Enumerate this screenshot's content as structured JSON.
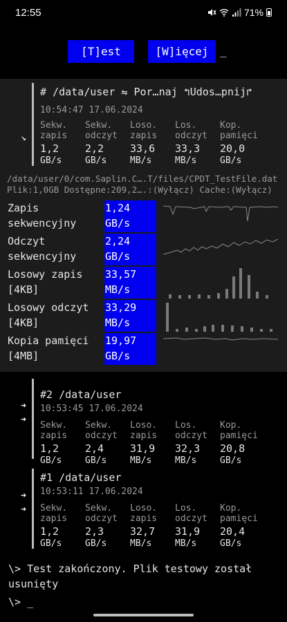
{
  "status_bar": {
    "time": "12:55",
    "battery": "71%"
  },
  "top_buttons": {
    "test": "[T]est",
    "more": "[W]ięcej",
    "cursor": "_"
  },
  "current": {
    "header": "#  /data/user ⇋ Por…naj  ↰Udos…pnij↱",
    "date": "10:54:47 17.06.2024",
    "arrow": "↘",
    "columns": [
      {
        "l1": "Sekw.",
        "l2": "zapis",
        "value": "1,2",
        "unit": "GB/s"
      },
      {
        "l1": "Sekw.",
        "l2": "odczyt",
        "value": "2,2",
        "unit": "GB/s"
      },
      {
        "l1": "Loso.",
        "l2": "zapis",
        "value": "33,6",
        "unit": "MB/s"
      },
      {
        "l1": "Los.",
        "l2": "odczyt",
        "value": "33,3",
        "unit": "MB/s"
      },
      {
        "l1": "Kop.",
        "l2": "pamięci",
        "value": "20,0",
        "unit": "GB/s"
      }
    ]
  },
  "file_path": "/data/user/0/com.Saplin.C….T/files/CPDT_TestFile.dat",
  "file_info": "Plik:1,0GB Dostępne:209,2….:(Wyłącz) Cache:(Wyłącz)",
  "benchmarks": [
    {
      "name1": "Zapis",
      "name2": "sekwencyjny",
      "value": "1,24",
      "unit": "GB/s"
    },
    {
      "name1": "Odczyt",
      "name2": "sekwencyjny",
      "value": "2,24",
      "unit": "GB/s"
    },
    {
      "name1": "Losowy zapis",
      "name2": "[4KB]",
      "value": "33,57",
      "unit": "MB/s"
    },
    {
      "name1": "Losowy odczyt",
      "name2": "[4KB]",
      "value": "33,29",
      "unit": "MB/s"
    },
    {
      "name1": "Kopia pamięci",
      "name2": "[4MB]",
      "value": "19,97",
      "unit": "GB/s"
    }
  ],
  "history": [
    {
      "header": "#2 /data/user",
      "date": "10:53:45 17.06.2024",
      "arrows": [
        "➜",
        "➜"
      ],
      "columns": [
        {
          "l1": "Sekw.",
          "l2": "zapis",
          "value": "1,2",
          "unit": "GB/s"
        },
        {
          "l1": "Sekw.",
          "l2": "odczyt",
          "value": "2,4",
          "unit": "GB/s"
        },
        {
          "l1": "Loso.",
          "l2": "zapis",
          "value": "31,9",
          "unit": "MB/s"
        },
        {
          "l1": "Los.",
          "l2": "odczyt",
          "value": "32,3",
          "unit": "MB/s"
        },
        {
          "l1": "Kop.",
          "l2": "pamięci",
          "value": "20,8",
          "unit": "GB/s"
        }
      ]
    },
    {
      "header": "#1 /data/user",
      "date": "10:53:11 17.06.2024",
      "arrows": [
        "➜",
        "➜"
      ],
      "columns": [
        {
          "l1": "Sekw.",
          "l2": "zapis",
          "value": "1,2",
          "unit": "GB/s"
        },
        {
          "l1": "Sekw.",
          "l2": "odczyt",
          "value": "2,3",
          "unit": "GB/s"
        },
        {
          "l1": "Loso.",
          "l2": "zapis",
          "value": "32,7",
          "unit": "MB/s"
        },
        {
          "l1": "Los.",
          "l2": "odczyt",
          "value": "31,9",
          "unit": "MB/s"
        },
        {
          "l1": "Kop.",
          "l2": "pamięci",
          "value": "20,4",
          "unit": "GB/s"
        }
      ]
    }
  ],
  "message": "\\> Test zakończony. Plik testowy został usunięty",
  "prompt": "\\> _",
  "colors": {
    "accent": "#0000ee",
    "panel": "#1c1c1c",
    "background": "#000000"
  }
}
